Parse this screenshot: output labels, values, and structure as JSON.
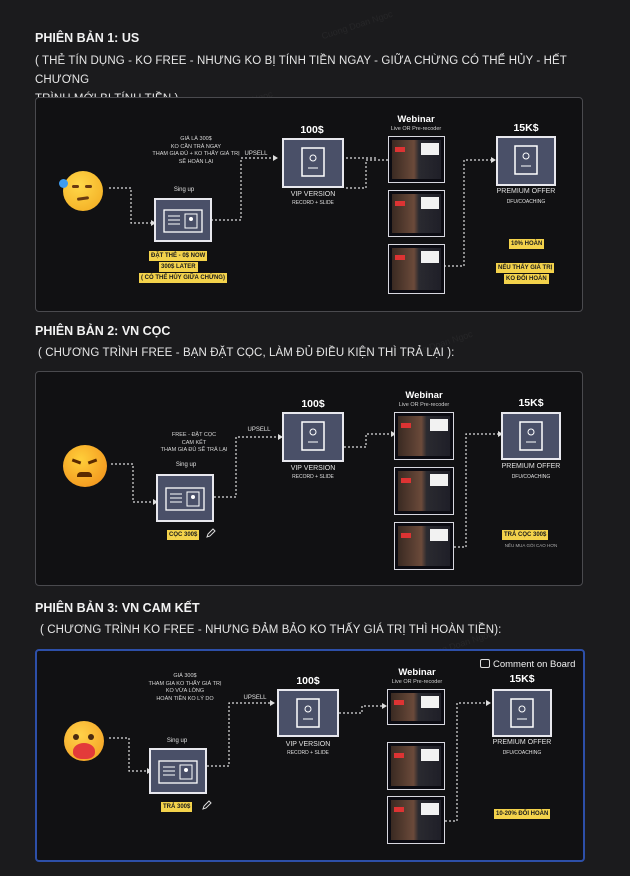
{
  "watermark_text": "Cuong Doan Ngoc",
  "sections": [
    {
      "heading": "PHIÊN BẢN 1:  US",
      "desc_line1": "( THẺ TÍN DỤNG - KO FREE - NHƯNG KO BỊ TÍNH TIỀN NGAY - GIỮA CHỪNG CÓ THỂ HỦY - HẾT CHƯƠNG",
      "desc_line2": "TRÌNH MỚI BỊ TÍNH TIỀN )",
      "note": "GIÁ LÀ 300$\nKO CẦN TRẢ NGAY\nTHAM GIA ĐỦ + KO THẤY GIÁ TRỊ\nSẼ HOÀN LẠI",
      "signup": "Sing up",
      "upsell": "UPSELL",
      "vip_price": "100$",
      "vip_title": "VIP VERSION",
      "vip_sub": "RECORD + SLIDE",
      "webinar_title": "Webinar",
      "webinar_sub": "Live OR Pre-recoder",
      "premium_price": "15K$",
      "premium_title": "PREMIUM OFFER",
      "premium_sub": "DFU/COACHING",
      "signup_hl1": "ĐẶT THẺ - 0$ NOW",
      "signup_hl2": "300$ LATER",
      "signup_hl3": "( CÓ THỂ HỦY GIỮA CHỪNG)",
      "premium_hl1": "10% HOÀN",
      "premium_hl2": "NẾU THẤY GIÁ TRỊ",
      "premium_hl3": "KO ĐỔI HOÀN"
    },
    {
      "heading": "PHIÊN BẢN 2: VN CỌC",
      "desc_line1": "( CHƯƠNG TRÌNH FREE - BẠN ĐẶT CỌC, LÀM ĐỦ ĐIỀU KIỆN THÌ TRẢ LẠI ):",
      "note": "FREE - ĐẶT CỌC\nCAM KẾT\nTHAM GIA ĐỦ SẼ TRẢ LẠI",
      "signup": "Sing up",
      "upsell": "UPSELL",
      "vip_price": "100$",
      "vip_title": "VIP VERSION",
      "vip_sub": "RECORD + SLIDE",
      "webinar_title": "Webinar",
      "webinar_sub": "Live OR Pre-recoder",
      "premium_price": "15K$",
      "premium_title": "PREMIUM OFFER",
      "premium_sub": "DFU/COACHING",
      "signup_hl": "CỌC 300$",
      "premium_hl": "TRẢ CỌC 300$",
      "premium_note": "NẾU MUA GÓI CAO HƠN"
    },
    {
      "heading": "PHIÊN BẢN 3: VN CAM KẾT",
      "desc_line1": "( CHƯƠNG TRÌNH KO FREE - NHƯNG ĐẢM BẢO KO THẤY GIÁ TRỊ THÌ HOÀN TIỀN):",
      "note": "GIÁ 300$\nTHAM GIA KO THẤY GIÁ TRỊ\nKO VỪA LÒNG\nHOÀN TIỀN KO LÝ DO",
      "signup": "Sing up",
      "upsell": "UPSELL",
      "vip_price": "100$",
      "vip_title": "VIP VERSION",
      "vip_sub": "RECORD + SLIDE",
      "webinar_title": "Webinar",
      "webinar_sub": "Live OR Pre-recoder",
      "premium_price": "15K$",
      "premium_title": "PREMIUM OFFER",
      "premium_sub": "DFU/COACHING",
      "signup_hl": "TRẢ 300$",
      "premium_hl": "10-20% ĐỔI HOÀN",
      "comment_button": "Comment on Board"
    }
  ],
  "colors": {
    "background": "#1b1b1d",
    "panel_border": "#4a4a4e",
    "selected_border": "#2d4fa8",
    "card_fill": "#4a5068",
    "highlight": "#f3d24b"
  },
  "icons": [
    "smirk-emoji-icon",
    "angry-emoji-icon",
    "heart-hug-emoji-icon",
    "profile-card-icon",
    "document-icon",
    "pencil-icon",
    "comment-icon"
  ]
}
